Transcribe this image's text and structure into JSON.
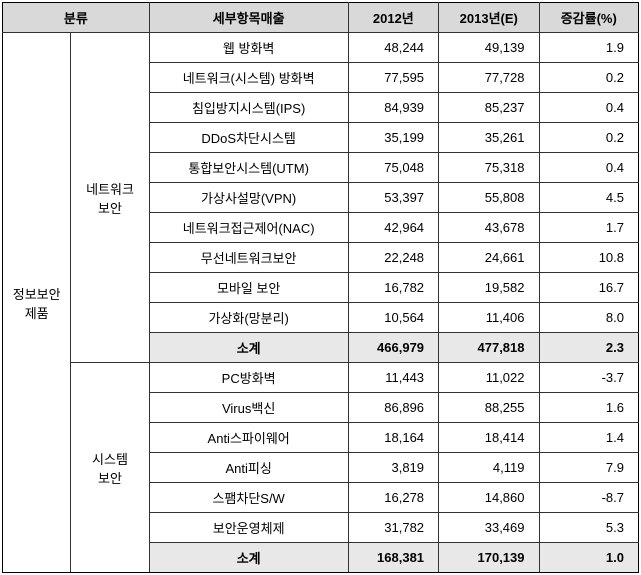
{
  "headers": {
    "category": "분류",
    "item": "세부항목매출",
    "y2012": "2012년",
    "y2013": "2013년(E)",
    "rate": "증감률(%)"
  },
  "rowgroup_label": "정보보안\n제품",
  "groups": [
    {
      "label": "네트워크\n보안",
      "rows": [
        {
          "item": "웹 방화벽",
          "y2012": "48,244",
          "y2013": "49,139",
          "rate": "1.9"
        },
        {
          "item": "네트워크(시스템) 방화벽",
          "y2012": "77,595",
          "y2013": "77,728",
          "rate": "0.2"
        },
        {
          "item": "침입방지시스템(IPS)",
          "y2012": "84,939",
          "y2013": "85,237",
          "rate": "0.4"
        },
        {
          "item": "DDoS차단시스템",
          "y2012": "35,199",
          "y2013": "35,261",
          "rate": "0.2"
        },
        {
          "item": "통합보안시스템(UTM)",
          "y2012": "75,048",
          "y2013": "75,318",
          "rate": "0.4"
        },
        {
          "item": "가상사설망(VPN)",
          "y2012": "53,397",
          "y2013": "55,808",
          "rate": "4.5"
        },
        {
          "item": "네트워크접근제어(NAC)",
          "y2012": "42,964",
          "y2013": "43,678",
          "rate": "1.7"
        },
        {
          "item": "무선네트워크보안",
          "y2012": "22,248",
          "y2013": "24,661",
          "rate": "10.8"
        },
        {
          "item": "모바일 보안",
          "y2012": "16,782",
          "y2013": "19,582",
          "rate": "16.7"
        },
        {
          "item": "가상화(망분리)",
          "y2012": "10,564",
          "y2013": "11,406",
          "rate": "8.0"
        }
      ],
      "subtotal": {
        "item": "소계",
        "y2012": "466,979",
        "y2013": "477,818",
        "rate": "2.3"
      }
    },
    {
      "label": "시스템\n보안",
      "rows": [
        {
          "item": "PC방화벽",
          "y2012": "11,443",
          "y2013": "11,022",
          "rate": "-3.7"
        },
        {
          "item": "Virus백신",
          "y2012": "86,896",
          "y2013": "88,255",
          "rate": "1.6"
        },
        {
          "item": "Anti스파이웨어",
          "y2012": "18,164",
          "y2013": "18,414",
          "rate": "1.4"
        },
        {
          "item": "Anti피싱",
          "y2012": "3,819",
          "y2013": "4,119",
          "rate": "7.9"
        },
        {
          "item": "스팸차단S/W",
          "y2012": "16,278",
          "y2013": "14,860",
          "rate": "-8.7"
        },
        {
          "item": "보안운영체제",
          "y2012": "31,782",
          "y2013": "33,469",
          "rate": "5.3"
        }
      ],
      "subtotal": {
        "item": "소계",
        "y2012": "168,381",
        "y2013": "170,139",
        "rate": "1.0"
      }
    }
  ]
}
